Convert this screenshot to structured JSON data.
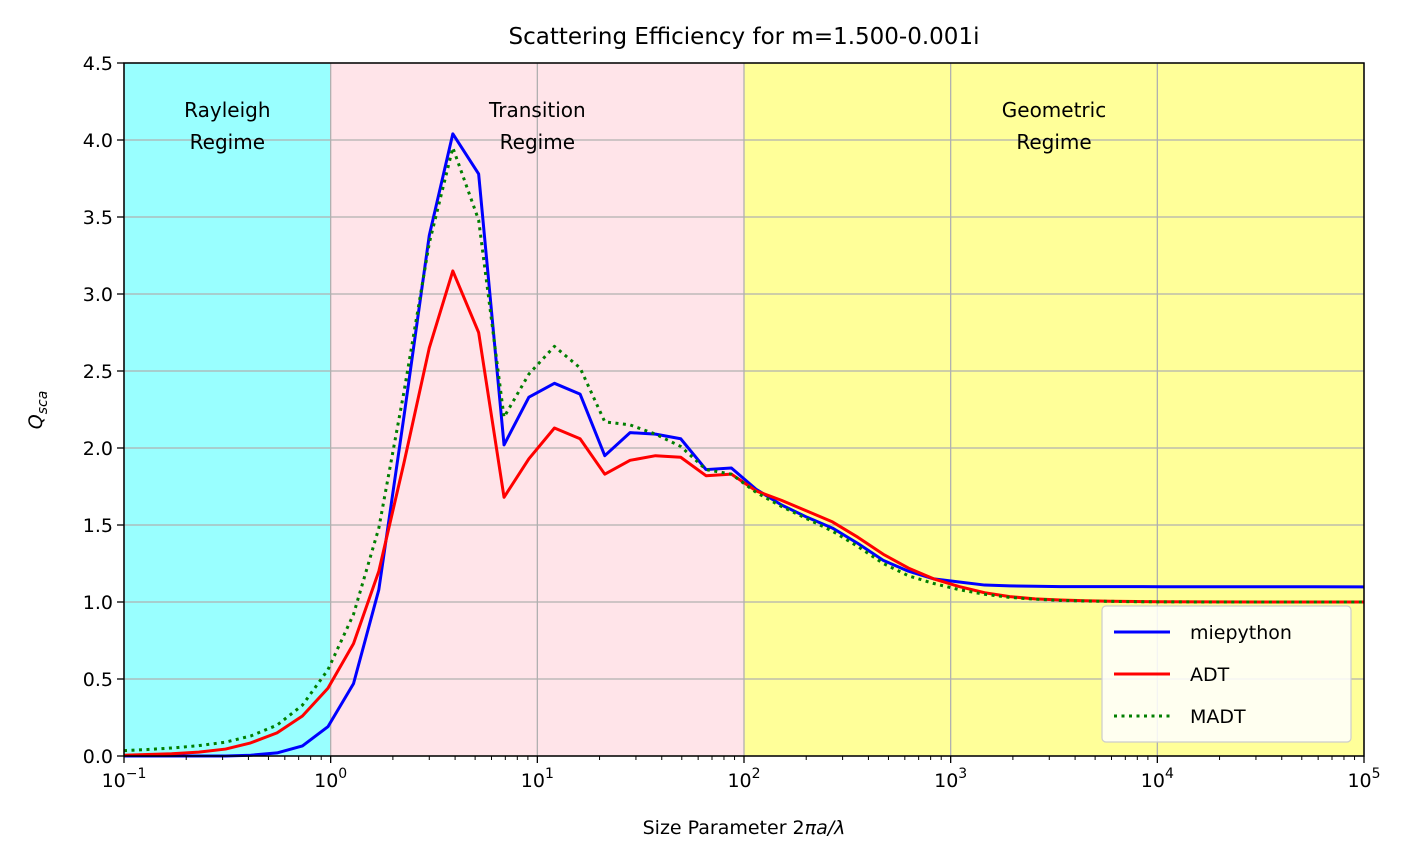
{
  "chart_data": {
    "type": "line",
    "title": "Scattering Efficiency for m=1.500-0.001i",
    "xlabel": {
      "prefix": "Size Parameter 2",
      "italic": "πa/λ"
    },
    "ylabel": {
      "base": "Q",
      "sub": "sca"
    },
    "xscale": "log",
    "xlim": [
      0.1,
      100000
    ],
    "ylim": [
      0,
      4.5
    ],
    "grid": true,
    "legend_position": "lower right",
    "x_ticks": [
      {
        "base": "10",
        "exp": "−1",
        "value": 0.1
      },
      {
        "base": "10",
        "exp": "0",
        "value": 1
      },
      {
        "base": "10",
        "exp": "1",
        "value": 10
      },
      {
        "base": "10",
        "exp": "2",
        "value": 100
      },
      {
        "base": "10",
        "exp": "3",
        "value": 1000
      },
      {
        "base": "10",
        "exp": "4",
        "value": 10000
      },
      {
        "base": "10",
        "exp": "5",
        "value": 100000
      }
    ],
    "y_ticks": [
      "0.0",
      "0.5",
      "1.0",
      "1.5",
      "2.0",
      "2.5",
      "3.0",
      "3.5",
      "4.0",
      "4.5"
    ],
    "regions": [
      {
        "label_lines": [
          "Rayleigh",
          "Regime"
        ],
        "x_range": [
          0.1,
          1
        ],
        "color": "#99ffff"
      },
      {
        "label_lines": [
          "Transition",
          "Regime"
        ],
        "x_range": [
          1,
          100
        ],
        "color": "#ffe4e9"
      },
      {
        "label_lines": [
          "Geometric",
          "Regime"
        ],
        "x_range": [
          100,
          100000
        ],
        "color": "#ffff99"
      }
    ],
    "x": [
      0.1,
      0.13,
      0.17,
      0.23,
      0.31,
      0.41,
      0.55,
      0.73,
      0.97,
      1.29,
      1.71,
      2.26,
      3.0,
      3.9,
      5.2,
      6.9,
      9.1,
      12.1,
      16.1,
      21.2,
      28.1,
      37.3,
      49.4,
      65.5,
      86.9,
      115,
      152,
      202,
      268,
      356,
      472,
      625,
      829,
      1100,
      1460,
      1930,
      2560,
      3400,
      4500,
      5970,
      7910,
      10500,
      18400,
      32400,
      56900,
      100000
    ],
    "series": [
      {
        "name": "miepython",
        "color": "#0000ff",
        "style": "solid",
        "values": [
          0.0,
          0.0,
          0.0,
          0.0,
          0.0,
          0.005,
          0.02,
          0.065,
          0.19,
          0.47,
          1.08,
          2.2,
          3.38,
          4.04,
          3.78,
          2.02,
          2.33,
          2.42,
          2.35,
          1.95,
          2.1,
          2.09,
          2.06,
          1.86,
          1.87,
          1.73,
          1.63,
          1.55,
          1.48,
          1.38,
          1.27,
          1.2,
          1.15,
          1.13,
          1.11,
          1.105,
          1.102,
          1.1,
          1.1,
          1.1,
          1.1,
          1.099,
          1.099,
          1.099,
          1.099,
          1.098
        ]
      },
      {
        "name": "ADT",
        "color": "#ff0000",
        "style": "solid",
        "values": [
          0.005,
          0.01,
          0.015,
          0.025,
          0.045,
          0.085,
          0.15,
          0.26,
          0.44,
          0.73,
          1.2,
          1.9,
          2.65,
          3.15,
          2.75,
          1.68,
          1.93,
          2.13,
          2.06,
          1.83,
          1.92,
          1.95,
          1.94,
          1.82,
          1.83,
          1.72,
          1.66,
          1.59,
          1.52,
          1.42,
          1.31,
          1.22,
          1.15,
          1.1,
          1.06,
          1.035,
          1.02,
          1.013,
          1.008,
          1.005,
          1.003,
          1.002,
          1.001,
          1.0,
          1.0,
          1.0
        ]
      },
      {
        "name": "MADT",
        "color": "#007f00",
        "style": "dotted",
        "values": [
          0.035,
          0.042,
          0.052,
          0.067,
          0.09,
          0.13,
          0.2,
          0.33,
          0.56,
          0.92,
          1.48,
          2.36,
          3.33,
          3.95,
          3.48,
          2.2,
          2.48,
          2.66,
          2.52,
          2.17,
          2.15,
          2.09,
          2.01,
          1.86,
          1.83,
          1.71,
          1.62,
          1.54,
          1.46,
          1.36,
          1.25,
          1.17,
          1.12,
          1.08,
          1.05,
          1.03,
          1.018,
          1.01,
          1.006,
          1.004,
          1.002,
          1.001,
          1.0,
          1.0,
          1.0,
          1.0
        ]
      }
    ]
  }
}
